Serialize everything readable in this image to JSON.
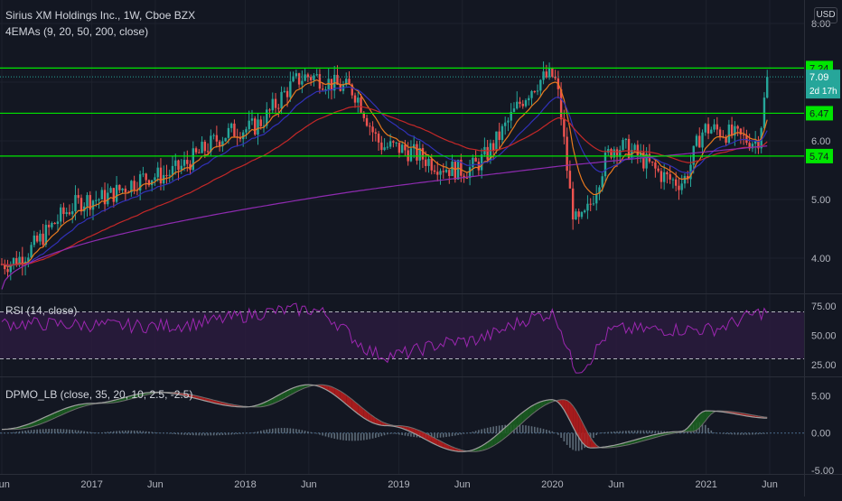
{
  "header": {
    "title": "Sirius XM Holdings Inc., 1W, Cboe BZX",
    "indicator": "4EMAs (9, 20, 50, 200, close)",
    "currency_button": "USD"
  },
  "colors": {
    "background": "#131722",
    "up_candle": "#26a69a",
    "down_candle": "#ef5350",
    "level_lines": "#00e600",
    "ema9": "#e8791e",
    "ema20": "#3131b8",
    "ema50": "#c42828",
    "ema200": "#8e2bb0",
    "rsi_line": "#9c27b0",
    "rsi_band": "#2a1b3d",
    "dpmo_line": "#9e9e9e",
    "dpmo_up_fill": "#1b5e20",
    "dpmo_down_fill": "#b71c1c"
  },
  "price_pane": {
    "price_label": "7.09",
    "countdown_label": "2d 17h"
  },
  "rsi_pane": {
    "label": "RSI (14, close)"
  },
  "dpmo_pane": {
    "label": "DPMO_LB (close, 35, 20, 10, 2.5, -2.5)"
  },
  "chart_data": [
    {
      "type": "candlestick",
      "title": "Sirius XM Holdings Inc., 1W, Cboe BZX",
      "x_axis_labels": [
        "Jun",
        "2017",
        "Jun",
        "2018",
        "Jun",
        "2019",
        "Jun",
        "2020",
        "Jun",
        "2021",
        "Jun"
      ],
      "x_axis_dates": [
        "2016-06",
        "2017-01",
        "2017-06",
        "2018-01",
        "2018-06",
        "2019-01",
        "2019-06",
        "2020-01",
        "2020-06",
        "2021-01",
        "2021-06"
      ],
      "y_ticks": [
        "4.00",
        "5.00",
        "6.00",
        "8.00"
      ],
      "ylim": [
        3.4,
        8.4
      ],
      "horizontal_levels": [
        {
          "value": 7.24,
          "label": "7.24"
        },
        {
          "value": 6.47,
          "label": "6.47"
        },
        {
          "value": 5.74,
          "label": "5.74"
        }
      ],
      "last_close": 7.09,
      "key_points": [
        {
          "date": "2016-06",
          "close": 3.9
        },
        {
          "date": "2017-01",
          "close": 5.0
        },
        {
          "date": "2017-06",
          "close": 5.4
        },
        {
          "date": "2018-01",
          "close": 6.2
        },
        {
          "date": "2018-06",
          "close": 7.1
        },
        {
          "date": "2018-09",
          "close": 6.9
        },
        {
          "date": "2018-12",
          "close": 5.9
        },
        {
          "date": "2019-06",
          "close": 5.5
        },
        {
          "date": "2020-01",
          "close": 7.1
        },
        {
          "date": "2020-03",
          "close": 4.6
        },
        {
          "date": "2020-06",
          "close": 5.9
        },
        {
          "date": "2020-11",
          "close": 5.3
        },
        {
          "date": "2021-01",
          "close": 6.2
        },
        {
          "date": "2021-05",
          "close": 6.0
        },
        {
          "date": "2021-06",
          "close": 7.09
        }
      ],
      "series": [
        {
          "name": "EMA 9"
        },
        {
          "name": "EMA 20"
        },
        {
          "name": "EMA 50"
        },
        {
          "name": "EMA 200"
        }
      ]
    },
    {
      "type": "line",
      "title": "RSI (14, close)",
      "y_ticks": [
        "25.00",
        "50.00",
        "75.00"
      ],
      "ylim": [
        15,
        85
      ],
      "bands": [
        30,
        70
      ],
      "key_points": [
        {
          "date": "2016-06",
          "value": 60
        },
        {
          "date": "2017-06",
          "value": 58
        },
        {
          "date": "2018-06",
          "value": 72
        },
        {
          "date": "2018-12",
          "value": 33
        },
        {
          "date": "2019-06",
          "value": 45
        },
        {
          "date": "2020-01",
          "value": 68
        },
        {
          "date": "2020-03",
          "value": 22
        },
        {
          "date": "2020-06",
          "value": 55
        },
        {
          "date": "2021-01",
          "value": 55
        },
        {
          "date": "2021-06",
          "value": 70
        }
      ]
    },
    {
      "type": "line",
      "title": "DPMO_LB (close, 35, 20, 10, 2.5, -2.5)",
      "y_ticks": [
        "-5.00",
        "0.00",
        "5.00"
      ],
      "ylim": [
        -5.5,
        7.5
      ],
      "key_points": [
        {
          "date": "2016-06",
          "value": 0.5
        },
        {
          "date": "2017-01",
          "value": 4.0
        },
        {
          "date": "2017-06",
          "value": 5.5
        },
        {
          "date": "2018-01",
          "value": 3.5
        },
        {
          "date": "2018-06",
          "value": 6.5
        },
        {
          "date": "2018-12",
          "value": 1.0
        },
        {
          "date": "2019-06",
          "value": -2.5
        },
        {
          "date": "2020-01",
          "value": 4.5
        },
        {
          "date": "2020-04",
          "value": -2.0
        },
        {
          "date": "2020-11",
          "value": 0.2
        },
        {
          "date": "2021-01",
          "value": 3.0
        },
        {
          "date": "2021-06",
          "value": 2.0
        }
      ]
    }
  ]
}
